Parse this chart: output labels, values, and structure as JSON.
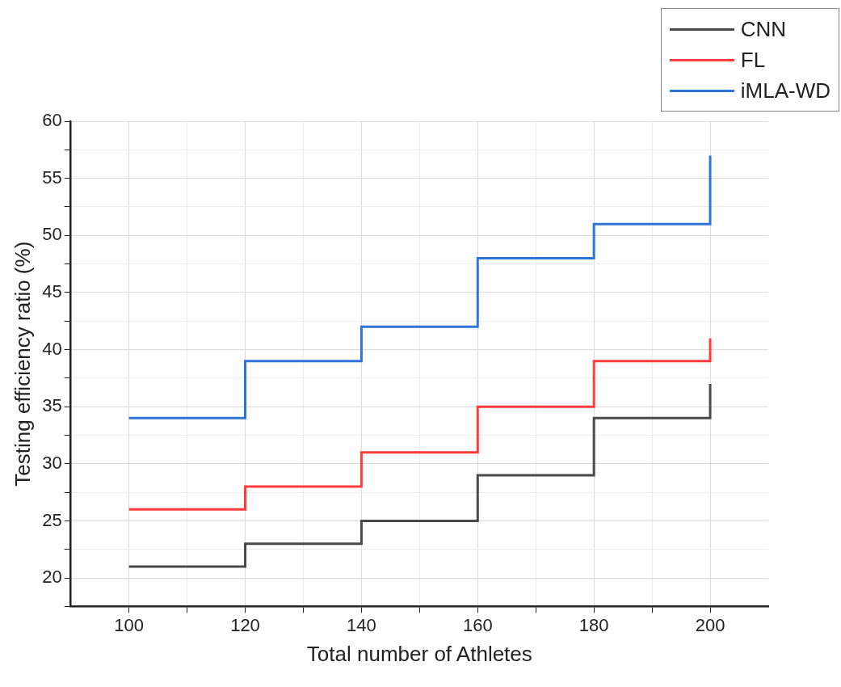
{
  "chart_data": {
    "type": "step",
    "xlabel": "Total number of Athletes",
    "ylabel": "Testing efficiency ratio (%)",
    "x": [
      100,
      120,
      140,
      160,
      180,
      200
    ],
    "series": [
      {
        "name": "CNN",
        "color": "#4a4a4a",
        "values": [
          21,
          23,
          25,
          29,
          34,
          37
        ]
      },
      {
        "name": "FL",
        "color": "#ff3b3b",
        "values": [
          26,
          28,
          31,
          35,
          39,
          41
        ]
      },
      {
        "name": "iMLA-WD",
        "color": "#2f74d8",
        "values": [
          34,
          39,
          42,
          48,
          51,
          57
        ]
      }
    ],
    "xlim": [
      90,
      210
    ],
    "xticks": [
      100,
      {
        "value": 110,
        "label": null
      },
      120,
      {
        "value": 130,
        "label": null
      },
      140,
      {
        "value": 150,
        "label": null
      },
      160,
      {
        "value": 170,
        "label": null
      },
      180,
      {
        "value": 190,
        "label": null
      },
      200
    ],
    "ylim": [
      17.5,
      60
    ],
    "yticks": [
      {
        "value": 17.5,
        "label": null
      },
      20,
      {
        "value": 22.5,
        "label": null
      },
      25,
      {
        "value": 27.5,
        "label": null
      },
      30,
      {
        "value": 32.5,
        "label": null
      },
      35,
      {
        "value": 37.5,
        "label": null
      },
      40,
      {
        "value": 42.5,
        "label": null
      },
      45,
      {
        "value": 47.5,
        "label": null
      },
      50,
      {
        "value": 52.5,
        "label": null
      },
      55,
      {
        "value": 57.5,
        "label": null
      },
      60
    ],
    "grid": true,
    "legend": "top right",
    "line_style": "solid"
  }
}
